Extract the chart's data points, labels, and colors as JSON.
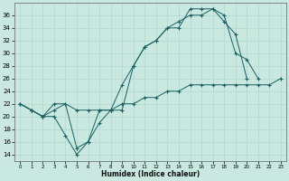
{
  "xlabel": "Humidex (Indice chaleur)",
  "background_color": "#c8e8e0",
  "grid_color": "#b0d8d0",
  "line_color": "#1a6060",
  "line1_x": [
    0,
    1,
    2,
    3,
    4,
    5,
    6,
    7,
    8,
    9,
    10,
    11,
    12,
    13,
    14,
    15,
    16,
    17,
    18,
    19,
    20,
    21
  ],
  "line1_y": [
    22,
    21,
    20,
    22,
    22,
    15,
    16,
    21,
    21,
    25,
    28,
    31,
    32,
    34,
    34,
    37,
    37,
    37,
    36,
    30,
    29,
    26
  ],
  "line2_x": [
    0,
    1,
    2,
    3,
    4,
    5,
    6,
    7,
    8,
    9,
    10,
    11,
    12,
    13,
    14,
    15,
    16,
    17,
    18,
    19,
    20,
    21
  ],
  "line2_y": [
    22,
    21,
    20,
    20,
    17,
    14,
    16,
    19,
    21,
    21,
    28,
    31,
    32,
    34,
    35,
    36,
    36,
    37,
    35,
    33,
    26,
    null
  ],
  "line3_x": [
    0,
    1,
    2,
    3,
    4,
    5,
    6,
    7,
    8,
    9,
    10,
    11,
    12,
    13,
    14,
    15,
    16,
    17,
    18,
    19,
    20,
    21,
    22,
    23
  ],
  "line3_y": [
    22,
    21,
    20,
    21,
    22,
    21,
    21,
    21,
    21,
    22,
    22,
    23,
    23,
    24,
    24,
    25,
    25,
    25,
    25,
    25,
    25,
    25,
    25,
    26
  ],
  "ylim": [
    13,
    38
  ],
  "xlim": [
    -0.5,
    23.5
  ],
  "yticks": [
    14,
    16,
    18,
    20,
    22,
    24,
    26,
    28,
    30,
    32,
    34,
    36
  ],
  "xticks": [
    0,
    1,
    2,
    3,
    4,
    5,
    6,
    7,
    8,
    9,
    10,
    11,
    12,
    13,
    14,
    15,
    16,
    17,
    18,
    19,
    20,
    21,
    22,
    23
  ]
}
